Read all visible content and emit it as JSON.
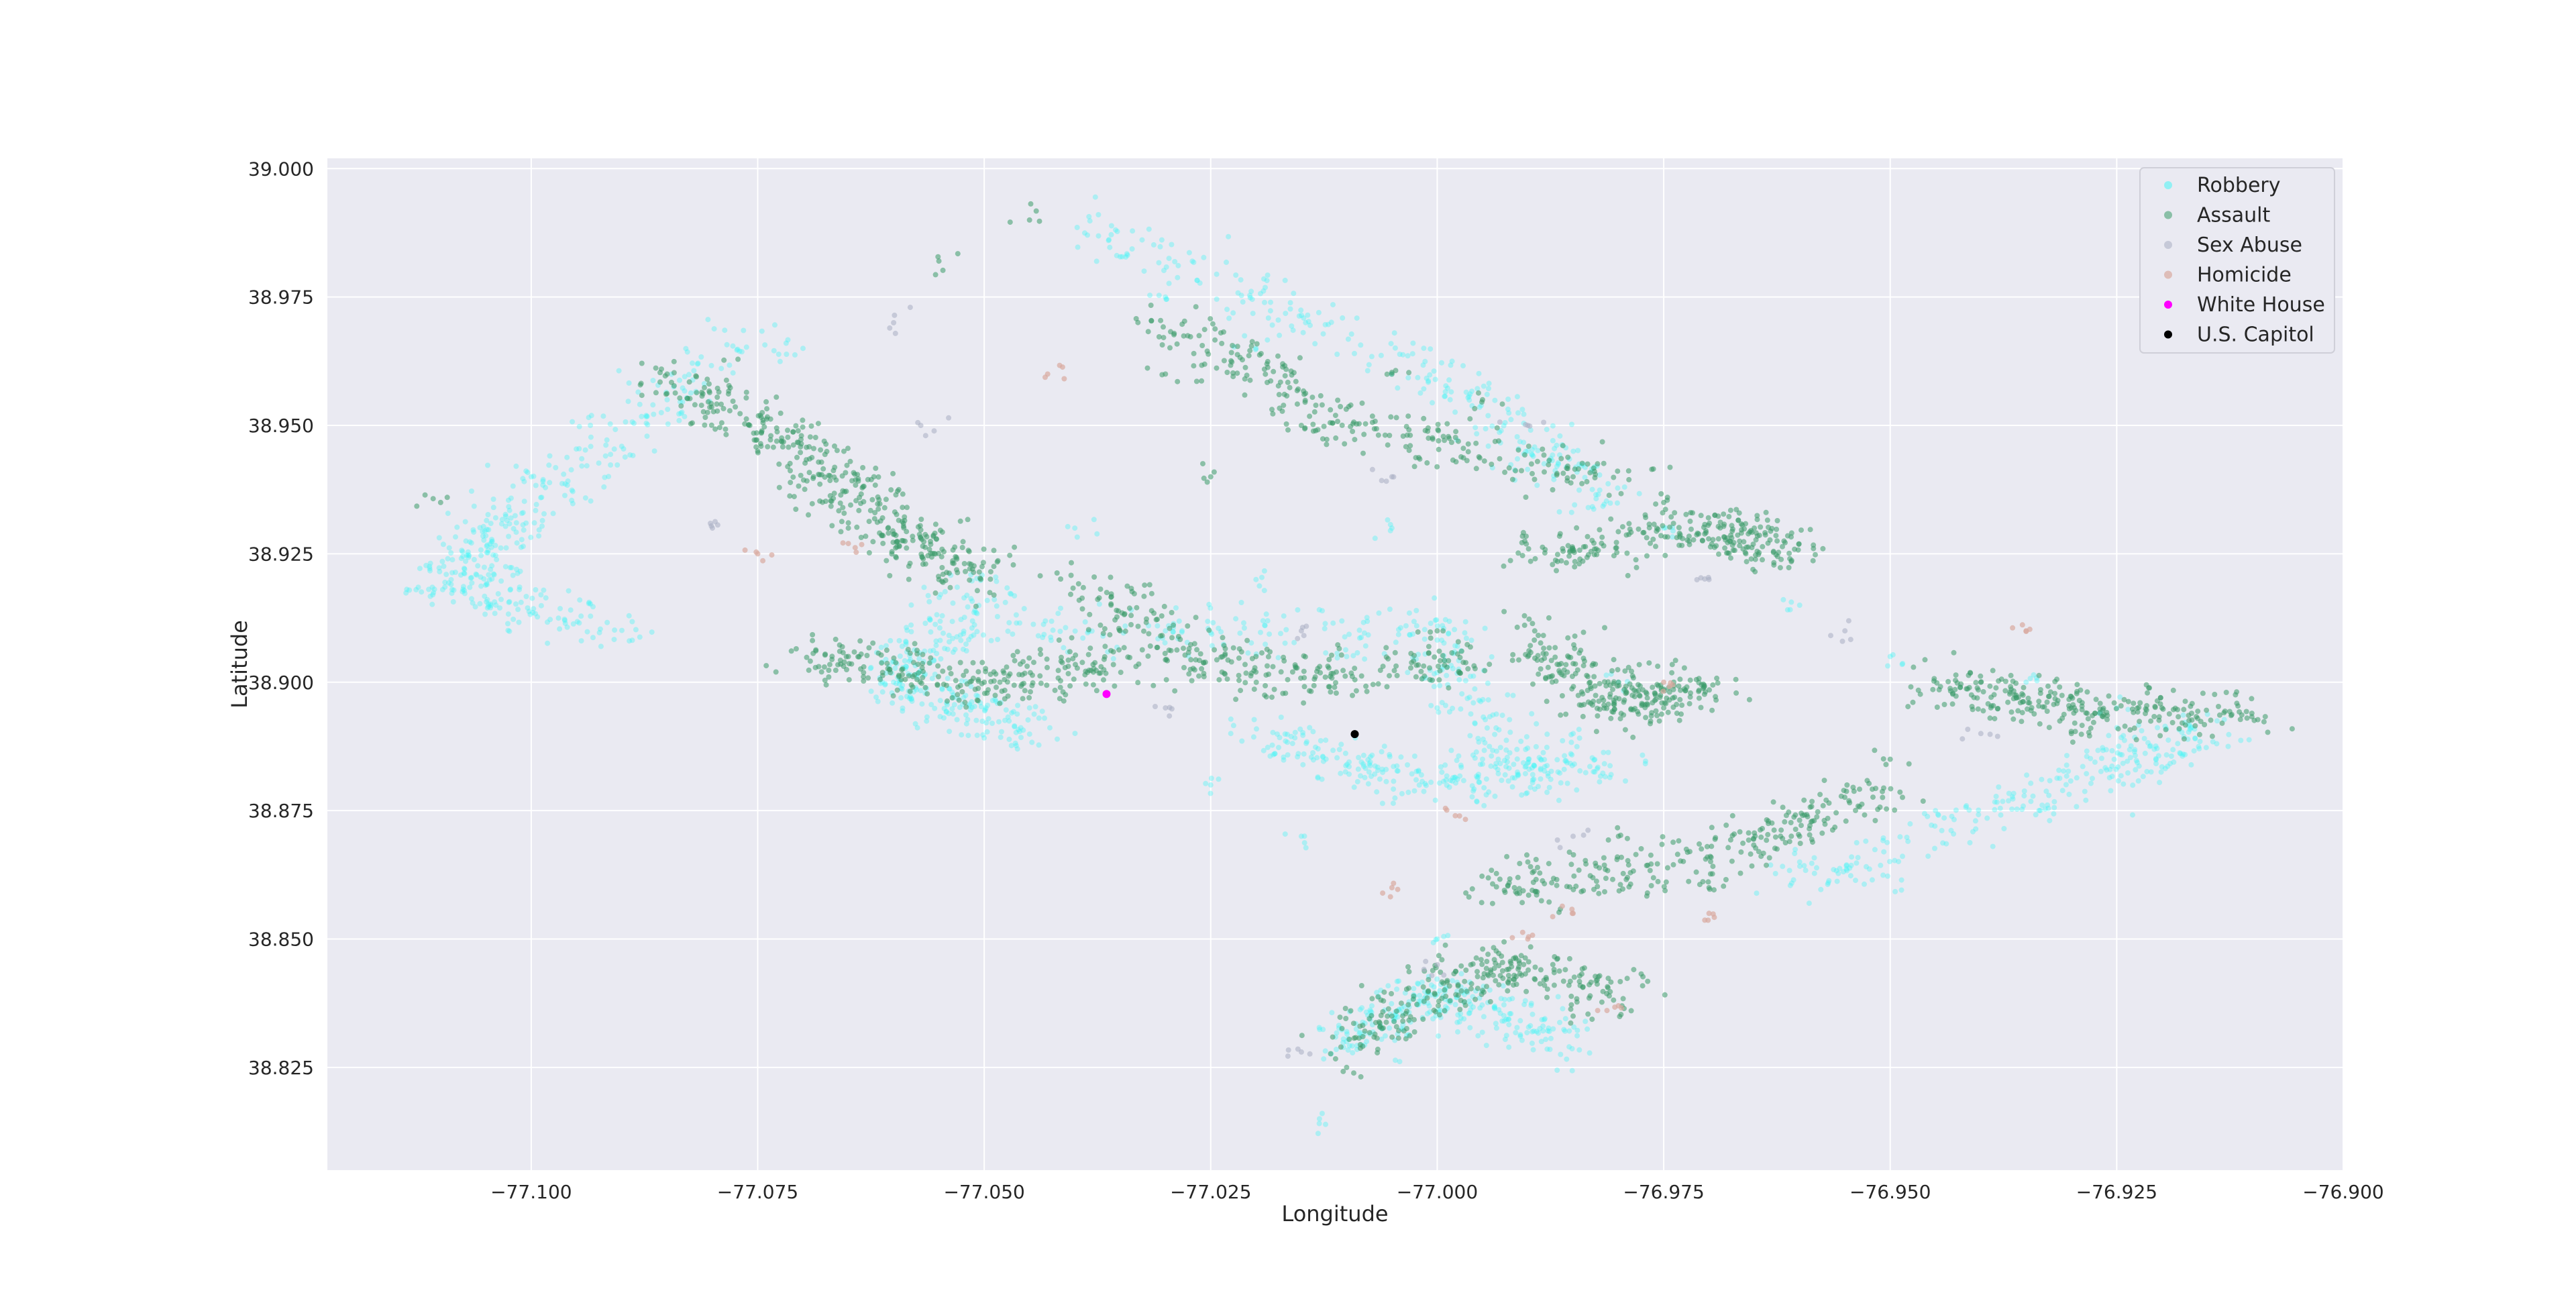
{
  "chart_data": {
    "type": "scatter",
    "xlabel": "Longitude",
    "ylabel": "Latitude",
    "xlim": [
      -77.1225,
      -76.9
    ],
    "ylim": [
      38.805,
      39.002
    ],
    "xticks": [
      -77.1,
      -77.075,
      -77.05,
      -77.025,
      -77.0,
      -76.975,
      -76.95,
      -76.925,
      -76.9
    ],
    "xtick_labels": [
      "−77.100",
      "−77.075",
      "−77.050",
      "−77.025",
      "−77.000",
      "−76.975",
      "−76.950",
      "−76.925",
      "−76.900"
    ],
    "yticks": [
      38.825,
      38.85,
      38.875,
      38.9,
      38.925,
      38.95,
      38.975,
      39.0
    ],
    "ytick_labels": [
      "38.825",
      "38.850",
      "38.875",
      "38.900",
      "38.925",
      "38.950",
      "38.975",
      "39.000"
    ],
    "grid": true,
    "legend_position": "upper-right",
    "series": [
      {
        "name": "Robbery",
        "color": "#38f5f5",
        "opacity": 0.35,
        "size": 4,
        "regions": [
          [
            [
              -77.075,
              38.968
            ],
            [
              -77.1,
              38.935
            ],
            [
              -77.11,
              38.92
            ],
            [
              -77.09,
              38.91
            ]
          ],
          [
            [
              -77.05,
              38.92
            ],
            [
              -77.06,
              38.9
            ],
            [
              -77.045,
              38.89
            ]
          ],
          [
            [
              -77.04,
              38.99
            ],
            [
              -77.0,
              38.96
            ],
            [
              -76.98,
              38.935
            ]
          ],
          [
            [
              -77.05,
              38.91
            ],
            [
              -77.0,
              38.91
            ],
            [
              -76.99,
              38.88
            ]
          ],
          [
            [
              -77.02,
              38.89
            ],
            [
              -77.0,
              38.88
            ],
            [
              -76.98,
              38.885
            ]
          ],
          [
            [
              -76.96,
              38.86
            ],
            [
              -76.93,
              38.88
            ],
            [
              -76.915,
              38.89
            ]
          ],
          [
            [
              -77.01,
              38.83
            ],
            [
              -77.0,
              38.84
            ],
            [
              -76.985,
              38.83
            ]
          ]
        ],
        "sample_points": [
          [
            -77.1,
            38.94
          ],
          [
            -77.085,
            38.955
          ],
          [
            -77.07,
            38.965
          ],
          [
            -77.06,
            38.9
          ],
          [
            -77.045,
            38.895
          ],
          [
            -77.04,
            38.93
          ],
          [
            -77.03,
            38.91
          ],
          [
            -77.02,
            38.92
          ],
          [
            -77.01,
            38.905
          ],
          [
            -77.0,
            38.895
          ],
          [
            -76.995,
            38.885
          ],
          [
            -76.985,
            38.89
          ],
          [
            -76.98,
            38.9
          ],
          [
            -76.975,
            38.93
          ],
          [
            -77.03,
            38.975
          ],
          [
            -77.02,
            38.965
          ],
          [
            -77.005,
            38.93
          ],
          [
            -76.99,
            38.945
          ],
          [
            -76.96,
            38.915
          ],
          [
            -76.95,
            38.905
          ],
          [
            -76.935,
            38.9
          ],
          [
            -76.925,
            38.895
          ],
          [
            -76.945,
            38.875
          ],
          [
            -76.96,
            38.865
          ],
          [
            -77.01,
            38.83
          ],
          [
            -77.0,
            38.85
          ],
          [
            -77.013,
            38.815
          ],
          [
            -77.025,
            38.88
          ],
          [
            -77.015,
            38.87
          ]
        ]
      },
      {
        "name": "Assault",
        "color": "#3a9a6a",
        "opacity": 0.55,
        "size": 4,
        "regions": [
          [
            [
              -77.085,
              38.96
            ],
            [
              -77.07,
              38.945
            ],
            [
              -77.06,
              38.93
            ],
            [
              -77.05,
              38.92
            ]
          ],
          [
            [
              -77.07,
              38.905
            ],
            [
              -77.05,
              38.9
            ],
            [
              -77.03,
              38.905
            ]
          ],
          [
            [
              -77.03,
              38.97
            ],
            [
              -77.01,
              38.95
            ],
            [
              -76.98,
              38.94
            ]
          ],
          [
            [
              -77.04,
              38.92
            ],
            [
              -77.02,
              38.9
            ],
            [
              -76.995,
              38.905
            ]
          ],
          [
            [
              -76.99,
              38.91
            ],
            [
              -76.98,
              38.895
            ],
            [
              -76.97,
              38.9
            ]
          ],
          [
            [
              -76.99,
              38.925
            ],
            [
              -76.97,
              38.93
            ],
            [
              -76.96,
              38.925
            ]
          ],
          [
            [
              -76.995,
              38.86
            ],
            [
              -76.97,
              38.865
            ],
            [
              -76.95,
              38.88
            ]
          ],
          [
            [
              -76.945,
              38.9
            ],
            [
              -76.93,
              38.895
            ],
            [
              -76.91,
              38.893
            ]
          ],
          [
            [
              -77.01,
              38.83
            ],
            [
              -76.995,
              38.845
            ],
            [
              -76.98,
              38.84
            ]
          ]
        ],
        "sample_points": [
          [
            -77.11,
            38.935
          ],
          [
            -77.085,
            38.96
          ],
          [
            -77.075,
            38.945
          ],
          [
            -77.065,
            38.93
          ],
          [
            -77.055,
            38.92
          ],
          [
            -77.065,
            38.905
          ],
          [
            -77.05,
            38.9
          ],
          [
            -77.035,
            38.91
          ],
          [
            -77.03,
            38.96
          ],
          [
            -77.025,
            38.94
          ],
          [
            -77.015,
            38.95
          ],
          [
            -77.005,
            38.96
          ],
          [
            -76.995,
            38.955
          ],
          [
            -76.985,
            38.94
          ],
          [
            -76.975,
            38.935
          ],
          [
            -76.965,
            38.93
          ],
          [
            -77.02,
            38.905
          ],
          [
            -77.0,
            38.91
          ],
          [
            -76.99,
            38.905
          ],
          [
            -76.98,
            38.9
          ],
          [
            -76.975,
            38.895
          ],
          [
            -76.99,
            38.865
          ],
          [
            -76.98,
            38.87
          ],
          [
            -76.97,
            38.86
          ],
          [
            -76.96,
            38.87
          ],
          [
            -76.95,
            38.885
          ],
          [
            -76.94,
            38.9
          ],
          [
            -76.93,
            38.89
          ],
          [
            -76.92,
            38.895
          ],
          [
            -77.005,
            38.835
          ],
          [
            -76.995,
            38.84
          ],
          [
            -76.985,
            38.835
          ],
          [
            -77.01,
            38.825
          ],
          [
            -77.045,
            38.99
          ],
          [
            -77.055,
            38.982
          ]
        ]
      },
      {
        "name": "Sex Abuse",
        "color": "#a8adc2",
        "opacity": 0.55,
        "size": 4,
        "sample_points": [
          [
            -77.06,
            38.97
          ],
          [
            -77.057,
            38.95
          ],
          [
            -77.08,
            38.93
          ],
          [
            -77.03,
            38.895
          ],
          [
            -77.015,
            38.91
          ],
          [
            -77.005,
            38.94
          ],
          [
            -76.99,
            38.95
          ],
          [
            -76.97,
            38.92
          ],
          [
            -76.955,
            38.91
          ],
          [
            -76.94,
            38.89
          ],
          [
            -76.985,
            38.87
          ],
          [
            -77.0,
            38.845
          ],
          [
            -77.015,
            38.828
          ]
        ]
      },
      {
        "name": "Homicide",
        "color": "#d9a9a0",
        "opacity": 0.7,
        "size": 4,
        "sample_points": [
          [
            -77.043,
            38.96
          ],
          [
            -77.065,
            38.927
          ],
          [
            -77.075,
            38.925
          ],
          [
            -76.998,
            38.874
          ],
          [
            -76.975,
            38.9
          ],
          [
            -76.985,
            38.855
          ],
          [
            -76.97,
            38.855
          ],
          [
            -76.99,
            38.85
          ],
          [
            -76.935,
            38.91
          ],
          [
            -76.98,
            38.837
          ],
          [
            -77.005,
            38.86
          ]
        ]
      },
      {
        "name": "White House",
        "color": "#ff00ff",
        "opacity": 1,
        "size": 6,
        "points": [
          [
            -77.0365,
            38.8977
          ]
        ]
      },
      {
        "name": "U.S. Capitol",
        "color": "#000000",
        "opacity": 1,
        "size": 6,
        "points": [
          [
            -77.0091,
            38.8899
          ]
        ]
      }
    ]
  }
}
